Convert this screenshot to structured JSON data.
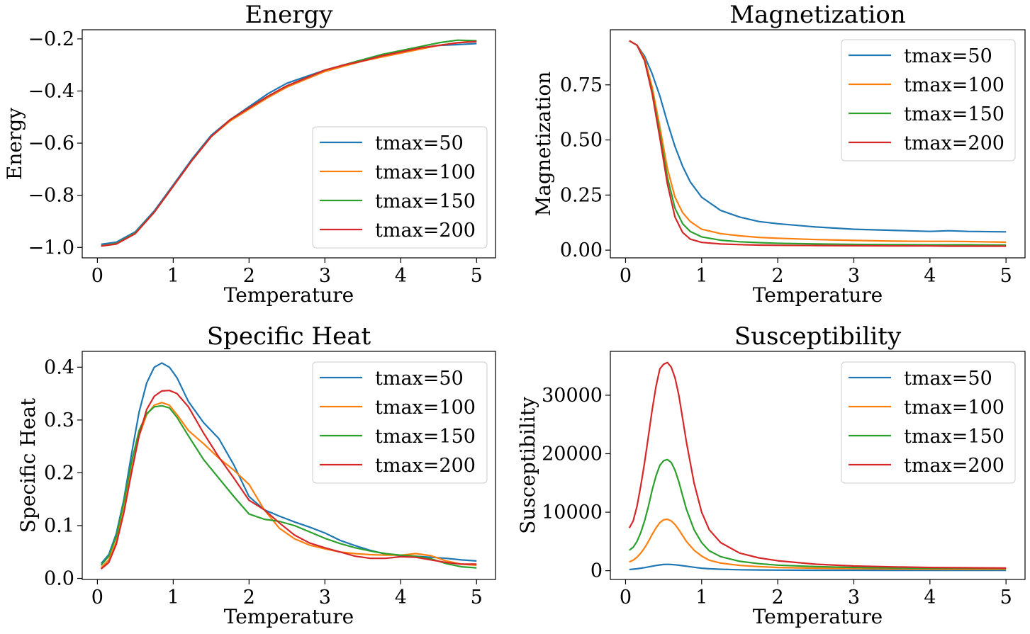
{
  "chart_data": [
    {
      "type": "line",
      "title": "Energy",
      "xlabel": "Temperature",
      "ylabel": "Energy",
      "xlim": [
        -0.2,
        5.25
      ],
      "ylim": [
        -1.04,
        -0.165
      ],
      "xticks": [
        0,
        1,
        2,
        3,
        4,
        5
      ],
      "xtick_labels": [
        "0",
        "1",
        "2",
        "3",
        "4",
        "5"
      ],
      "yticks": [
        -1.0,
        -0.8,
        -0.6,
        -0.4,
        -0.2
      ],
      "ytick_labels": [
        "−1.0",
        "−0.8",
        "−0.6",
        "−0.4",
        "−0.2"
      ],
      "legend_position": "lower right",
      "grid": false,
      "x": [
        0.05,
        0.25,
        0.5,
        0.75,
        1.0,
        1.25,
        1.5,
        1.75,
        2.0,
        2.25,
        2.5,
        2.75,
        3.0,
        3.25,
        3.5,
        3.75,
        4.0,
        4.25,
        4.5,
        4.75,
        5.0
      ],
      "series": [
        {
          "name": "tmax=50",
          "color": "#1f77b4",
          "values": [
            -0.988,
            -0.98,
            -0.94,
            -0.86,
            -0.76,
            -0.66,
            -0.57,
            -0.51,
            -0.46,
            -0.41,
            -0.37,
            -0.345,
            -0.32,
            -0.3,
            -0.28,
            -0.26,
            -0.25,
            -0.235,
            -0.225,
            -0.222,
            -0.218
          ]
        },
        {
          "name": "tmax=100",
          "color": "#ff7f0e",
          "values": [
            -0.994,
            -0.985,
            -0.945,
            -0.865,
            -0.765,
            -0.665,
            -0.575,
            -0.515,
            -0.47,
            -0.425,
            -0.385,
            -0.355,
            -0.325,
            -0.305,
            -0.285,
            -0.27,
            -0.255,
            -0.24,
            -0.225,
            -0.215,
            -0.208
          ]
        },
        {
          "name": "tmax=150",
          "color": "#2ca02c",
          "values": [
            -0.994,
            -0.985,
            -0.945,
            -0.865,
            -0.765,
            -0.665,
            -0.575,
            -0.51,
            -0.465,
            -0.42,
            -0.38,
            -0.35,
            -0.32,
            -0.3,
            -0.28,
            -0.26,
            -0.245,
            -0.23,
            -0.215,
            -0.205,
            -0.207
          ]
        },
        {
          "name": "tmax=200",
          "color": "#d62728",
          "values": [
            -0.995,
            -0.987,
            -0.947,
            -0.865,
            -0.765,
            -0.665,
            -0.575,
            -0.51,
            -0.465,
            -0.42,
            -0.38,
            -0.35,
            -0.32,
            -0.3,
            -0.285,
            -0.265,
            -0.25,
            -0.235,
            -0.225,
            -0.215,
            -0.21
          ]
        }
      ]
    },
    {
      "type": "line",
      "title": "Magnetization",
      "xlabel": "Temperature",
      "ylabel": "Magnetization",
      "xlim": [
        -0.2,
        5.25
      ],
      "ylim": [
        -0.035,
        1.0
      ],
      "xticks": [
        0,
        1,
        2,
        3,
        4,
        5
      ],
      "xtick_labels": [
        "0",
        "1",
        "2",
        "3",
        "4",
        "5"
      ],
      "yticks": [
        0.0,
        0.25,
        0.5,
        0.75
      ],
      "ytick_labels": [
        "0.00",
        "0.25",
        "0.50",
        "0.75"
      ],
      "legend_position": "upper right",
      "grid": false,
      "x": [
        0.05,
        0.15,
        0.25,
        0.35,
        0.45,
        0.55,
        0.65,
        0.75,
        0.85,
        1.0,
        1.25,
        1.5,
        1.75,
        2.0,
        2.5,
        3.0,
        3.5,
        4.0,
        4.25,
        4.5,
        5.0
      ],
      "series": [
        {
          "name": "tmax=50",
          "color": "#1f77b4",
          "values": [
            0.95,
            0.93,
            0.88,
            0.8,
            0.7,
            0.58,
            0.47,
            0.38,
            0.31,
            0.24,
            0.18,
            0.15,
            0.13,
            0.12,
            0.105,
            0.095,
            0.09,
            0.085,
            0.088,
            0.085,
            0.083
          ]
        },
        {
          "name": "tmax=100",
          "color": "#ff7f0e",
          "values": [
            0.95,
            0.93,
            0.87,
            0.74,
            0.56,
            0.37,
            0.24,
            0.17,
            0.13,
            0.095,
            0.075,
            0.065,
            0.058,
            0.054,
            0.048,
            0.044,
            0.041,
            0.04,
            0.04,
            0.039,
            0.036
          ]
        },
        {
          "name": "tmax=150",
          "color": "#2ca02c",
          "values": [
            0.95,
            0.93,
            0.86,
            0.72,
            0.53,
            0.33,
            0.19,
            0.12,
            0.085,
            0.06,
            0.045,
            0.038,
            0.034,
            0.031,
            0.028,
            0.026,
            0.025,
            0.024,
            0.024,
            0.024,
            0.023
          ]
        },
        {
          "name": "tmax=200",
          "color": "#d62728",
          "values": [
            0.95,
            0.93,
            0.86,
            0.71,
            0.51,
            0.3,
            0.15,
            0.08,
            0.05,
            0.035,
            0.028,
            0.025,
            0.023,
            0.022,
            0.021,
            0.02,
            0.019,
            0.019,
            0.018,
            0.018,
            0.018
          ]
        }
      ]
    },
    {
      "type": "line",
      "title": "Specific Heat",
      "xlabel": "Temperature",
      "ylabel": "Specific Heat",
      "xlim": [
        -0.2,
        5.25
      ],
      "ylim": [
        -0.002,
        0.43
      ],
      "xticks": [
        0,
        1,
        2,
        3,
        4,
        5
      ],
      "xtick_labels": [
        "0",
        "1",
        "2",
        "3",
        "4",
        "5"
      ],
      "yticks": [
        0.0,
        0.1,
        0.2,
        0.3,
        0.4
      ],
      "ytick_labels": [
        "0.0",
        "0.1",
        "0.2",
        "0.3",
        "0.4"
      ],
      "legend_position": "upper right",
      "grid": false,
      "x": [
        0.05,
        0.15,
        0.25,
        0.35,
        0.45,
        0.55,
        0.65,
        0.75,
        0.85,
        0.95,
        1.05,
        1.2,
        1.4,
        1.6,
        1.8,
        2.0,
        2.2,
        2.4,
        2.6,
        2.8,
        3.0,
        3.2,
        3.4,
        3.6,
        3.8,
        4.0,
        4.2,
        4.4,
        4.6,
        4.8,
        5.0
      ],
      "series": [
        {
          "name": "tmax=50",
          "color": "#1f77b4",
          "values": [
            0.028,
            0.045,
            0.085,
            0.15,
            0.235,
            0.315,
            0.37,
            0.4,
            0.408,
            0.4,
            0.38,
            0.335,
            0.295,
            0.265,
            0.215,
            0.155,
            0.13,
            0.118,
            0.107,
            0.097,
            0.086,
            0.072,
            0.062,
            0.053,
            0.046,
            0.043,
            0.042,
            0.04,
            0.038,
            0.035,
            0.033
          ]
        },
        {
          "name": "tmax=100",
          "color": "#ff7f0e",
          "values": [
            0.02,
            0.035,
            0.07,
            0.13,
            0.205,
            0.27,
            0.31,
            0.328,
            0.333,
            0.328,
            0.31,
            0.28,
            0.255,
            0.228,
            0.205,
            0.178,
            0.13,
            0.095,
            0.075,
            0.063,
            0.056,
            0.05,
            0.047,
            0.045,
            0.044,
            0.044,
            0.047,
            0.043,
            0.033,
            0.027,
            0.025
          ]
        },
        {
          "name": "tmax=150",
          "color": "#2ca02c",
          "values": [
            0.025,
            0.042,
            0.08,
            0.145,
            0.22,
            0.28,
            0.312,
            0.325,
            0.327,
            0.323,
            0.305,
            0.27,
            0.225,
            0.19,
            0.155,
            0.122,
            0.112,
            0.108,
            0.1,
            0.088,
            0.076,
            0.066,
            0.058,
            0.052,
            0.047,
            0.044,
            0.042,
            0.037,
            0.028,
            0.022,
            0.02
          ]
        },
        {
          "name": "tmax=200",
          "color": "#d62728",
          "values": [
            0.018,
            0.03,
            0.065,
            0.125,
            0.2,
            0.27,
            0.32,
            0.345,
            0.355,
            0.356,
            0.35,
            0.325,
            0.275,
            0.23,
            0.19,
            0.148,
            0.13,
            0.105,
            0.082,
            0.067,
            0.058,
            0.05,
            0.042,
            0.038,
            0.038,
            0.041,
            0.04,
            0.035,
            0.03,
            0.027,
            0.027
          ]
        }
      ]
    },
    {
      "type": "line",
      "title": "Susceptibility",
      "xlabel": "Temperature",
      "ylabel": "Susceptibility",
      "xlim": [
        -0.2,
        5.25
      ],
      "ylim": [
        -1500,
        37500
      ],
      "xticks": [
        0,
        1,
        2,
        3,
        4,
        5
      ],
      "xtick_labels": [
        "0",
        "1",
        "2",
        "3",
        "4",
        "5"
      ],
      "yticks": [
        0,
        10000,
        20000,
        30000
      ],
      "ytick_labels": [
        "0",
        "10000",
        "20000",
        "30000"
      ],
      "legend_position": "upper right",
      "grid": false,
      "x": [
        0.05,
        0.1,
        0.15,
        0.2,
        0.25,
        0.3,
        0.35,
        0.4,
        0.45,
        0.5,
        0.55,
        0.6,
        0.65,
        0.7,
        0.75,
        0.8,
        0.9,
        1.0,
        1.1,
        1.25,
        1.5,
        1.75,
        2.0,
        2.5,
        3.0,
        3.5,
        4.0,
        4.5,
        5.0
      ],
      "series": [
        {
          "name": "tmax=50",
          "color": "#1f77b4",
          "values": [
            200,
            260,
            330,
            420,
            520,
            640,
            760,
            880,
            980,
            1050,
            1080,
            1060,
            1010,
            940,
            850,
            760,
            580,
            430,
            330,
            240,
            160,
            120,
            100,
            80,
            70,
            60,
            55,
            50,
            45
          ]
        },
        {
          "name": "tmax=100",
          "color": "#ff7f0e",
          "values": [
            1500,
            1800,
            2300,
            3000,
            3900,
            5000,
            6200,
            7300,
            8200,
            8700,
            8800,
            8500,
            7900,
            7000,
            6000,
            5000,
            3500,
            2500,
            1800,
            1300,
            900,
            700,
            550,
            420,
            350,
            300,
            270,
            250,
            240
          ]
        },
        {
          "name": "tmax=150",
          "color": "#2ca02c",
          "values": [
            3500,
            4000,
            5000,
            6500,
            8500,
            11000,
            13800,
            16200,
            18000,
            18800,
            19000,
            18500,
            17200,
            15200,
            12800,
            10500,
            7000,
            4800,
            3400,
            2400,
            1600,
            1200,
            950,
            700,
            550,
            480,
            430,
            400,
            380
          ]
        },
        {
          "name": "tmax=200",
          "color": "#d62728",
          "values": [
            7300,
            8500,
            11000,
            14500,
            18500,
            23000,
            27500,
            31500,
            34500,
            35300,
            35600,
            34800,
            33000,
            30000,
            26000,
            22000,
            15000,
            10000,
            7000,
            4800,
            3000,
            2200,
            1700,
            1100,
            800,
            650,
            550,
            500,
            450
          ]
        }
      ]
    }
  ]
}
